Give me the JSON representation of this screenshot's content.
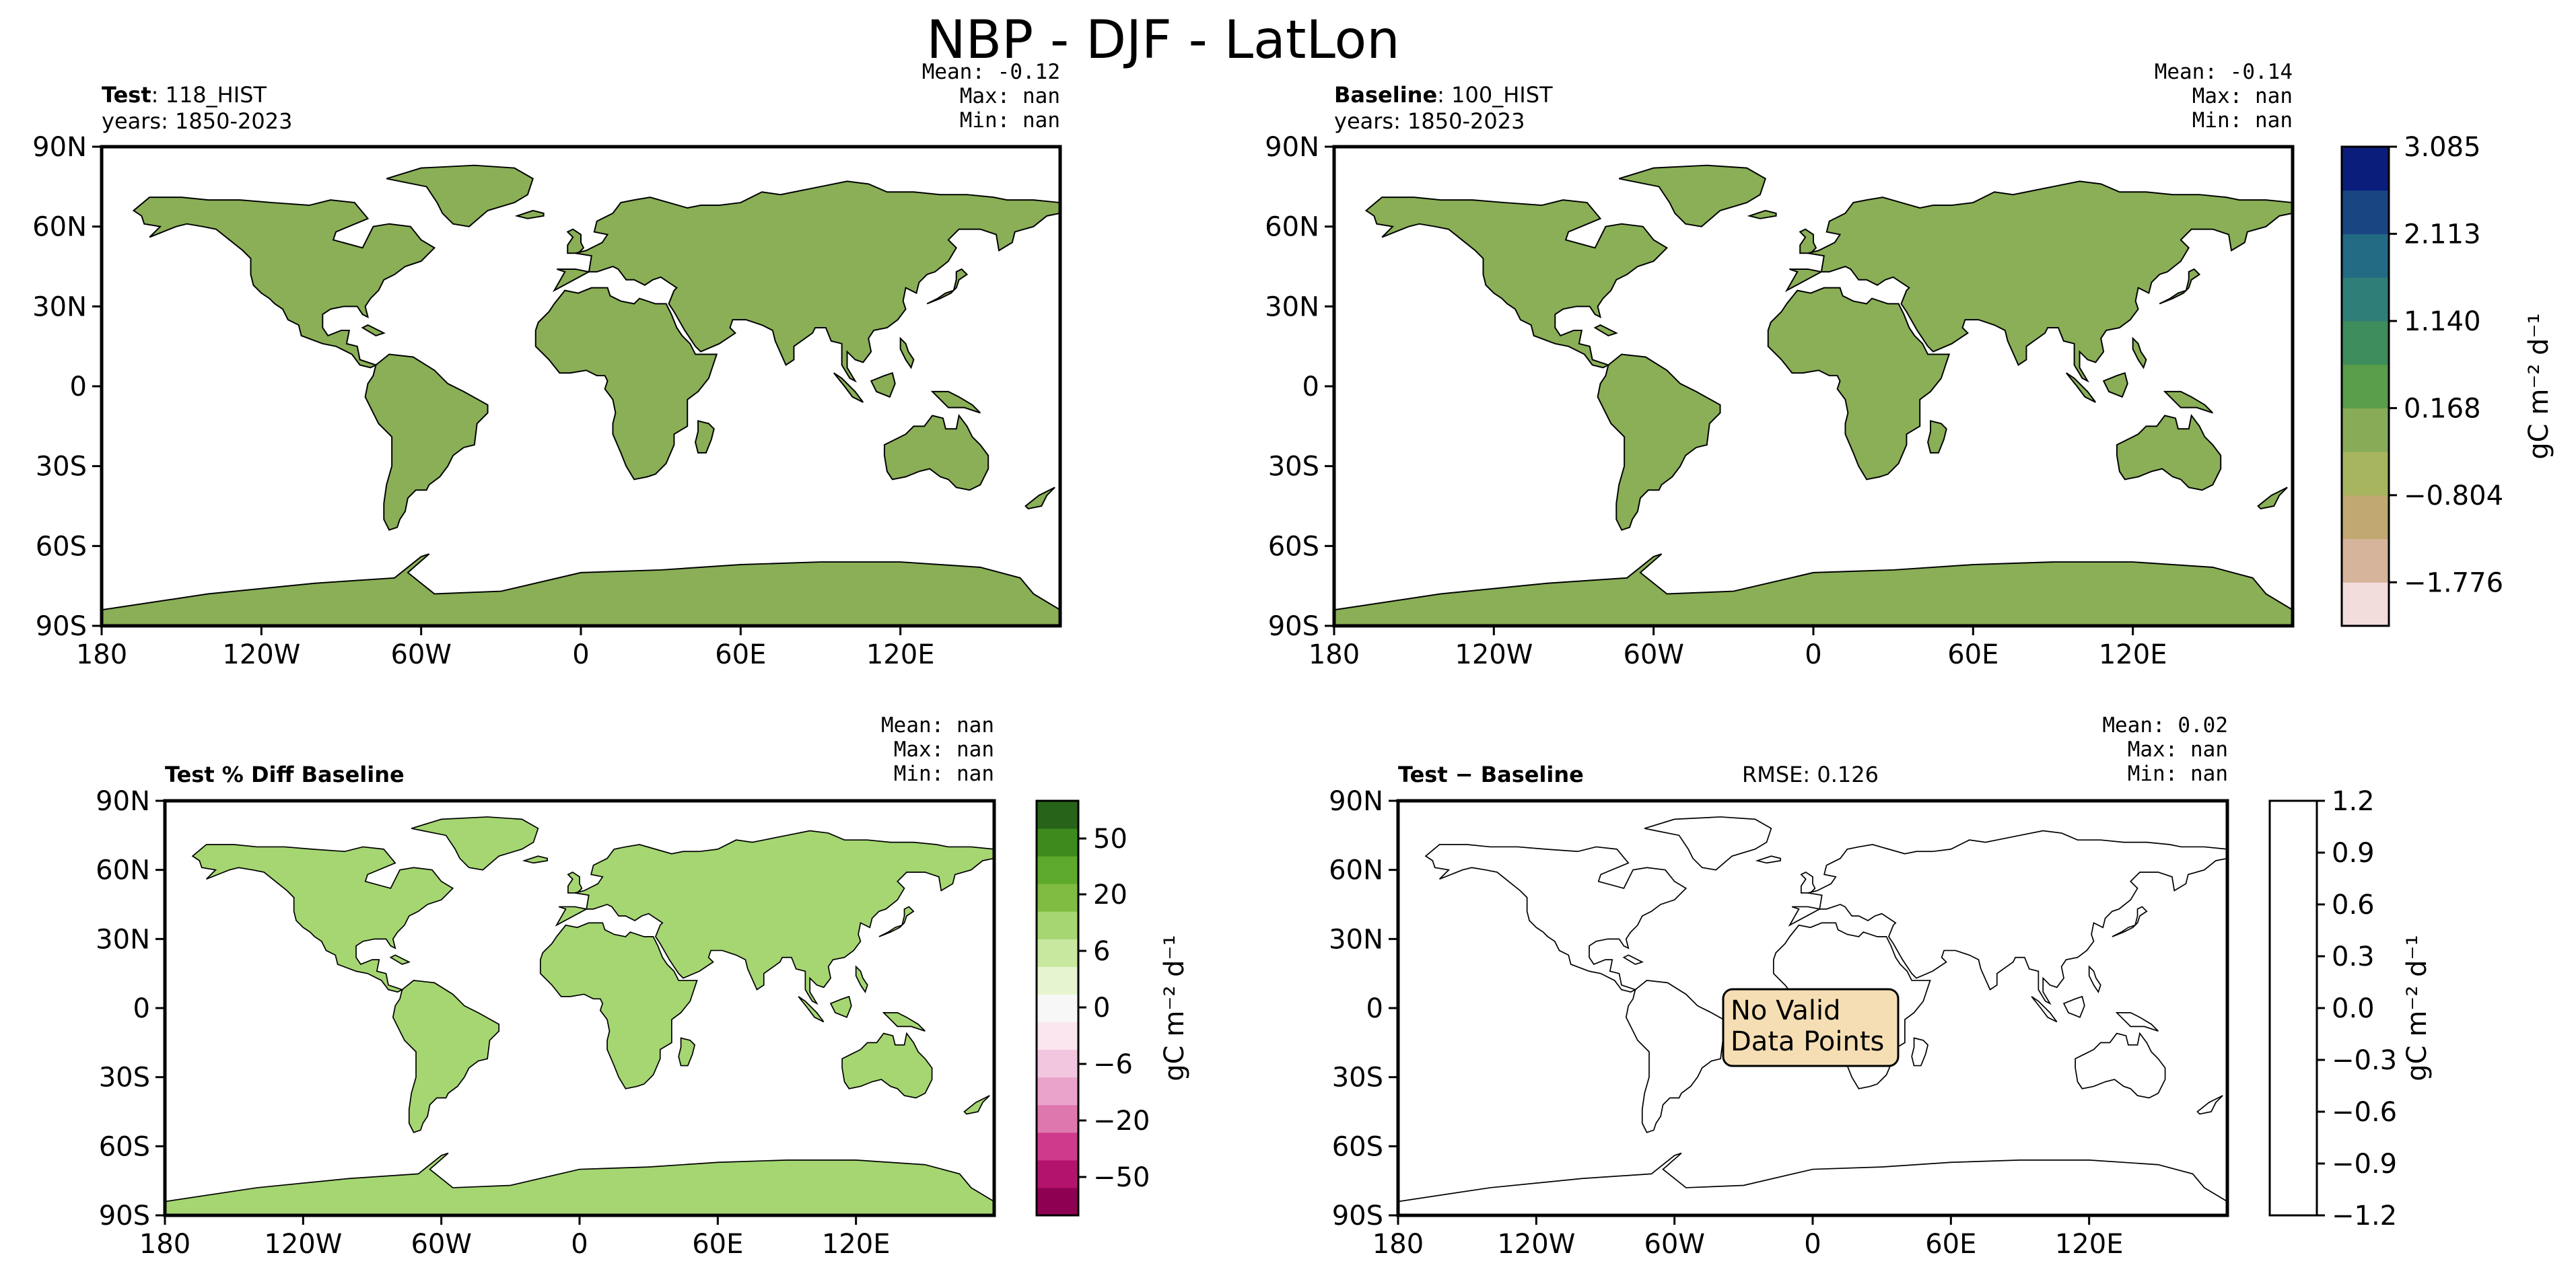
{
  "title": "NBP - DJF - LatLon",
  "colors": {
    "land_base": "#8aaf57",
    "coast": "#000000",
    "cmap_main": [
      "#f3dcdc",
      "#d6b49c",
      "#c0a870",
      "#a7b55e",
      "#88ab58",
      "#5a9d4a",
      "#3e8d5c",
      "#2f7f78",
      "#236a85",
      "#1a4583",
      "#0a1d7a"
    ],
    "cmap_diff": [
      "#8e0152",
      "#b4136d",
      "#cf3b8c",
      "#de77ae",
      "#eaa3cb",
      "#f3c6df",
      "#fbe6f0",
      "#f7f7f7",
      "#e6f5d0",
      "#c8e8a0",
      "#a5d672",
      "#7fbc41",
      "#5da92c",
      "#3f8a1c",
      "#276419"
    ]
  },
  "panels": {
    "test": {
      "title_bold": "Test",
      "title_rest": ": 118_HIST",
      "years": "years: 1850-2023",
      "stats": [
        "Mean: -0.12",
        "Max:   nan",
        "Min:   nan"
      ]
    },
    "baseline": {
      "title_bold": "Baseline",
      "title_rest": ": 100_HIST",
      "years": "years: 1850-2023",
      "stats": [
        "Mean: -0.14",
        "Max:   nan",
        "Min:   nan"
      ]
    },
    "pct_diff": {
      "title_bold": "Test % Diff Baseline",
      "stats": [
        "Mean:   nan",
        "Max:   nan",
        "Min:   nan"
      ]
    },
    "diff": {
      "title_bold": "Test − Baseline",
      "rmse": "RMSE: 0.126",
      "stats": [
        "Mean:  0.02",
        "Max:   nan",
        "Min:   nan"
      ],
      "no_data": [
        "No Valid",
        "Data Points"
      ]
    }
  },
  "chart_data": {
    "type": "heatmap",
    "title": "NBP - DJF - LatLon",
    "xticks": [
      "180",
      "120W",
      "60W",
      "0",
      "60E",
      "120E"
    ],
    "yticks": [
      "90N",
      "60N",
      "30N",
      "0",
      "30S",
      "60S",
      "90S"
    ],
    "xlim": [
      -180,
      180
    ],
    "ylim": [
      -90,
      90
    ],
    "xtick_values": [
      -180,
      -120,
      -60,
      0,
      60,
      120
    ],
    "ytick_values": [
      90,
      60,
      30,
      0,
      -30,
      -60,
      -90
    ],
    "colorbars": [
      {
        "panel": "test_baseline",
        "label": "gC m⁻² d⁻¹",
        "ticks": [
          "3.085",
          "2.113",
          "1.140",
          "0.168",
          "−0.804",
          "−1.776"
        ],
        "range": [
          -2.262,
          3.085
        ]
      },
      {
        "panel": "pct_diff",
        "label": "gC m⁻² d⁻¹",
        "ticks": [
          "50",
          "20",
          "6",
          "0",
          "−6",
          "−20",
          "−50"
        ]
      },
      {
        "panel": "diff",
        "label": "gC m⁻² d⁻¹",
        "ticks": [
          "1.2",
          "0.9",
          "0.6",
          "0.3",
          "0.0",
          "−0.3",
          "−0.6",
          "−0.9",
          "−1.2"
        ],
        "range": [
          -1.2,
          1.2
        ]
      }
    ]
  }
}
